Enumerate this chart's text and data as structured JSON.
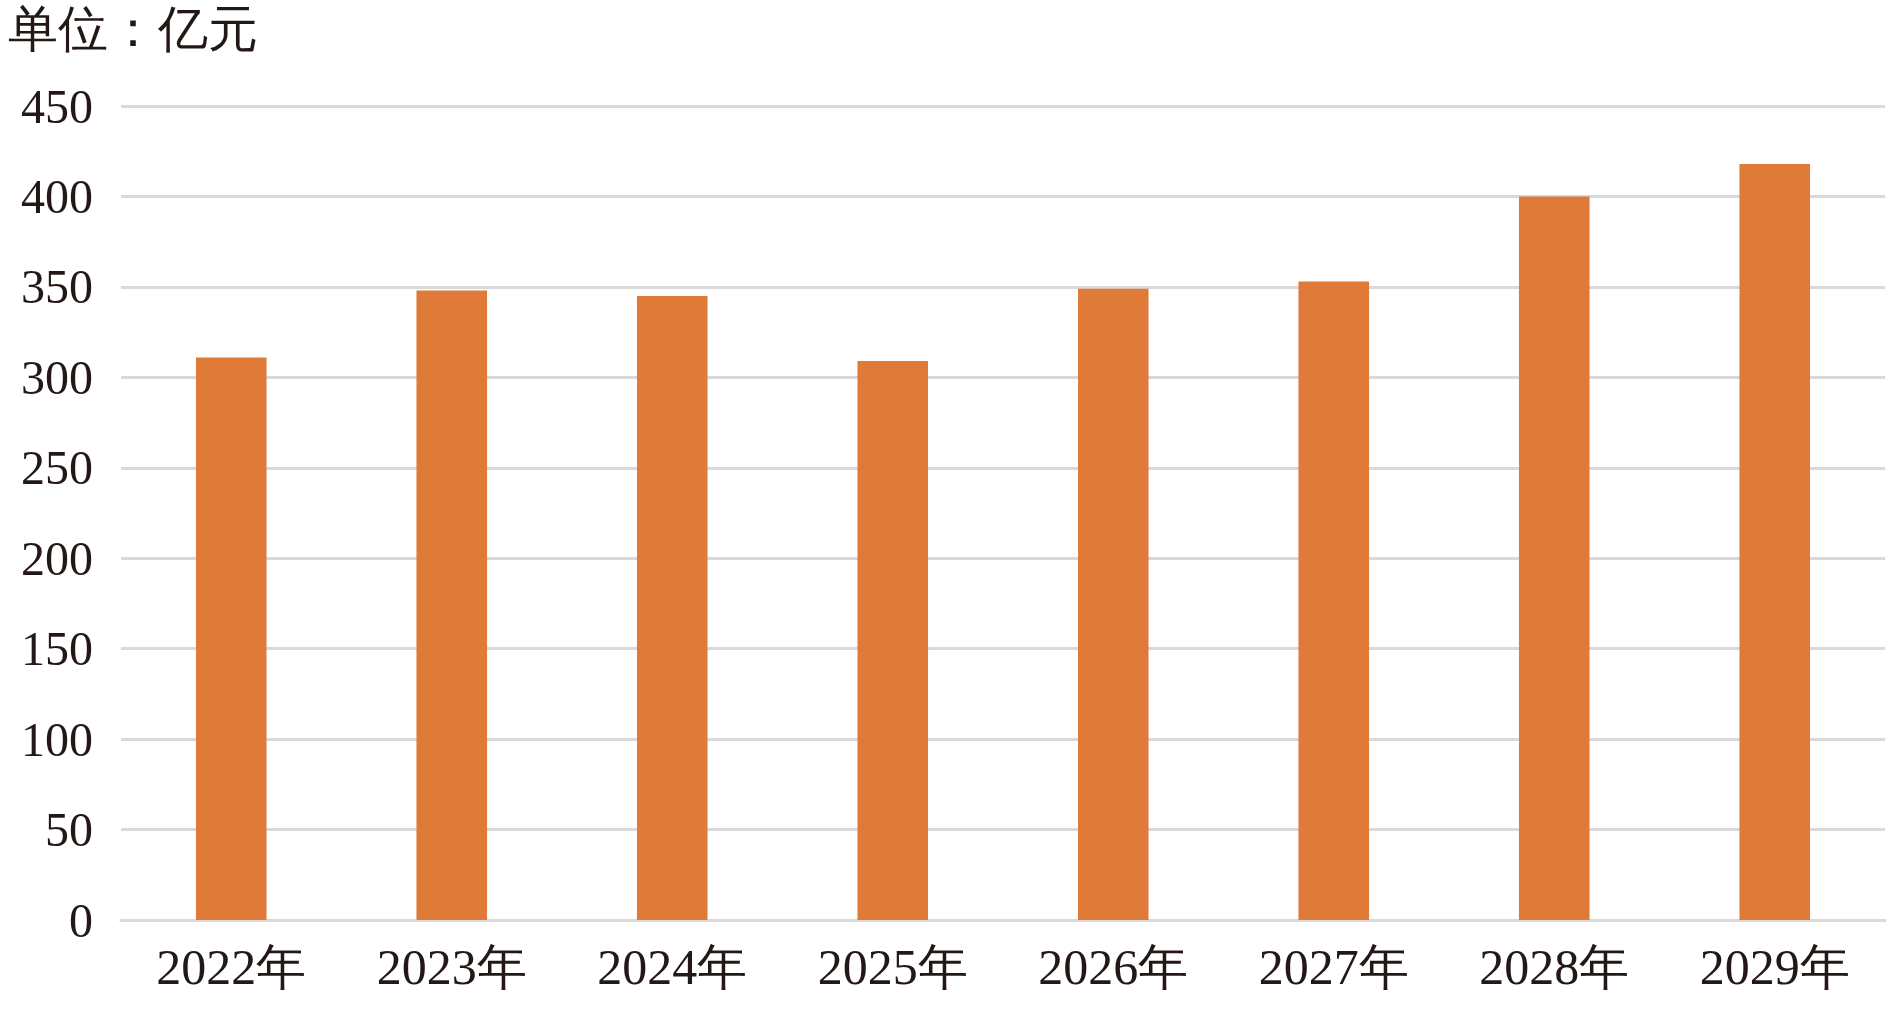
{
  "chart_data": {
    "type": "bar",
    "ylabel": "单位：亿元",
    "categories": [
      "2022年",
      "2023年",
      "2024年",
      "2025年",
      "2026年",
      "2027年",
      "2028年",
      "2029年"
    ],
    "series": [
      {
        "color": "#e07a38",
        "values": [
          311,
          348,
          345,
          309,
          349,
          353,
          400,
          418
        ]
      }
    ],
    "ylim": [
      0,
      450
    ],
    "yticks": [
      0,
      50,
      100,
      150,
      200,
      250,
      300,
      350,
      400,
      450
    ],
    "grid": "y"
  }
}
